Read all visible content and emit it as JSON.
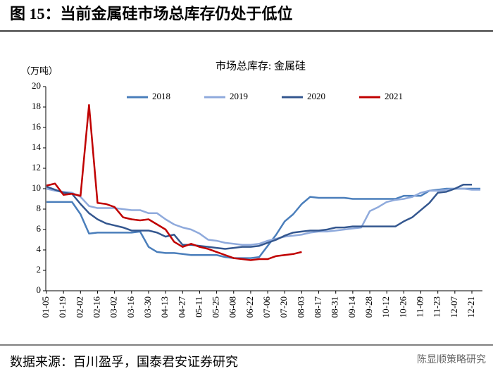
{
  "title": "图 15：当前金属硅市场总库存仍处于低位",
  "source": "数据来源：百川盈孚，国泰君安证券研究",
  "watermark": "陈显顺策略研究",
  "chart_data": {
    "type": "line",
    "title": "市场总库存: 金属硅",
    "y_label": "（万吨）",
    "categories": [
      "01-05",
      null,
      "01-19",
      null,
      "02-02",
      null,
      "02-16",
      null,
      "03-02",
      null,
      "03-16",
      null,
      "03-30",
      null,
      "04-13",
      null,
      "04-27",
      null,
      "05-11",
      null,
      "05-25",
      null,
      "06-08",
      null,
      "06-22",
      null,
      "07-06",
      null,
      "07-20",
      null,
      "08-03",
      null,
      "08-17",
      null,
      "08-31",
      null,
      "09-14",
      null,
      "09-28",
      null,
      "10-12",
      null,
      "10-26",
      null,
      "11-09",
      null,
      "11-23",
      null,
      "12-07",
      null,
      "12-21",
      null
    ],
    "ylim": [
      0,
      20
    ],
    "yticks": [
      0,
      2,
      4,
      6,
      8,
      10,
      12,
      14,
      16,
      18,
      20
    ],
    "grid": false,
    "legend": "top",
    "series": [
      {
        "name": "2018",
        "color": "#4a7ebb",
        "values": [
          8.7,
          8.7,
          8.7,
          8.7,
          7.5,
          5.6,
          5.7,
          5.7,
          5.7,
          5.7,
          5.7,
          5.8,
          4.3,
          3.8,
          3.7,
          3.7,
          3.6,
          3.5,
          3.5,
          3.5,
          3.5,
          3.3,
          3.2,
          3.2,
          3.2,
          3.3,
          4.4,
          5.5,
          6.8,
          7.5,
          8.5,
          9.2,
          9.1,
          9.1,
          9.1,
          9.1,
          9.0,
          9.0,
          9.0,
          9.0,
          9.0,
          9.0,
          9.3,
          9.3,
          9.3,
          9.8,
          9.9,
          10.0,
          10.0,
          10.0,
          10.0,
          10.0
        ]
      },
      {
        "name": "2019",
        "color": "#8faadc",
        "values": [
          10.0,
          9.8,
          9.7,
          9.6,
          9.2,
          8.3,
          8.1,
          8.1,
          8.1,
          8.0,
          7.9,
          7.9,
          7.6,
          7.6,
          7.0,
          6.5,
          6.2,
          6.0,
          5.6,
          5.0,
          4.9,
          4.7,
          4.6,
          4.5,
          4.5,
          4.6,
          4.9,
          5.1,
          5.3,
          5.4,
          5.5,
          5.7,
          5.8,
          5.8,
          5.9,
          6.0,
          6.1,
          6.2,
          7.8,
          8.2,
          8.7,
          8.9,
          9.0,
          9.2,
          9.6,
          9.8,
          9.8,
          9.9,
          10.0,
          10.0,
          9.9,
          9.9
        ]
      },
      {
        "name": "2020",
        "color": "#34578f",
        "values": [
          10.2,
          9.9,
          9.6,
          9.5,
          8.5,
          7.6,
          7.0,
          6.6,
          6.4,
          6.2,
          5.9,
          5.9,
          5.9,
          5.7,
          5.3,
          5.5,
          4.5,
          4.5,
          4.4,
          4.3,
          4.2,
          4.1,
          4.2,
          4.3,
          4.3,
          4.4,
          4.7,
          5.0,
          5.4,
          5.7,
          5.8,
          5.9,
          5.9,
          6.0,
          6.2,
          6.2,
          6.3,
          6.3,
          6.3,
          6.3,
          6.3,
          6.3,
          6.8,
          7.2,
          7.9,
          8.6,
          9.6,
          9.7,
          10.0,
          10.4,
          10.4,
          null
        ]
      },
      {
        "name": "2021",
        "color": "#c00000",
        "values": [
          10.3,
          10.5,
          9.4,
          9.5,
          9.3,
          18.2,
          8.6,
          8.5,
          8.2,
          7.2,
          7.0,
          6.9,
          7.0,
          6.5,
          6.0,
          4.8,
          4.3,
          4.6,
          4.3,
          4.1,
          3.8,
          3.5,
          3.2,
          3.1,
          3.0,
          3.1,
          3.1,
          3.4,
          3.5,
          3.6,
          3.8,
          null,
          null,
          null,
          null,
          null,
          null,
          null,
          null,
          null,
          null,
          null,
          null,
          null,
          null,
          null,
          null,
          null,
          null,
          null,
          null,
          null
        ]
      }
    ]
  }
}
